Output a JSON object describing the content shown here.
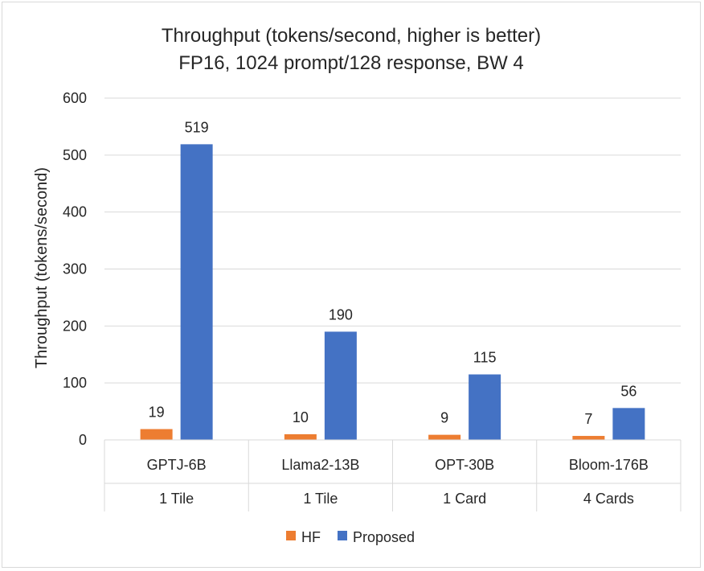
{
  "chart_data": {
    "type": "bar",
    "title": "Throughput (tokens/second, higher is better)",
    "subtitle": "FP16, 1024 prompt/128 response, BW 4",
    "ylabel": "Throughput (tokens/second)",
    "xlabel": "",
    "ylim": [
      0,
      600
    ],
    "yticks": [
      0,
      100,
      200,
      300,
      400,
      500,
      600
    ],
    "grid": true,
    "legend_position": "bottom",
    "categories": [
      "GPTJ-6B",
      "Llama2-13B",
      "OPT-30B",
      "Bloom-176B"
    ],
    "category_groups": [
      "1 Tile",
      "1 Tile",
      "1 Card",
      "4 Cards"
    ],
    "series": [
      {
        "name": "HF",
        "color": "#ed7d31",
        "values": [
          19,
          10,
          9,
          7
        ]
      },
      {
        "name": "Proposed",
        "color": "#4472c4",
        "values": [
          519,
          190,
          115,
          56
        ]
      }
    ]
  }
}
